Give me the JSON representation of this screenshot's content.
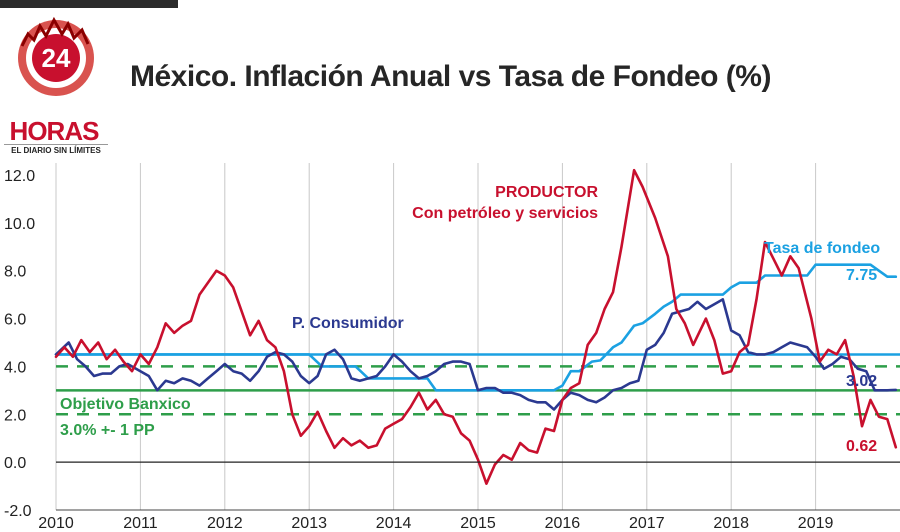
{
  "header": {
    "title": "México. Inflación Anual vs Tasa de Fondeo (%)"
  },
  "logo": {
    "number": "24",
    "name": "HORAS",
    "tagline": "EL DIARIO SIN LÍMITES"
  },
  "colors": {
    "productor": "#c8102e",
    "consumidor": "#2b3990",
    "fondeo": "#1ba1e2",
    "objetivo": "#2e9e4a",
    "grid": "#c8c8c8"
  },
  "chart_data": {
    "type": "line",
    "title": "México. Inflación Anual vs Tasa de Fondeo (%)",
    "xlabel": "",
    "ylabel": "",
    "xlim": [
      2010,
      2020
    ],
    "ylim": [
      -2,
      12.5
    ],
    "x_ticks": [
      2010,
      2011,
      2012,
      2013,
      2014,
      2015,
      2016,
      2017,
      2018,
      2019
    ],
    "x_tick_labels": [
      "2010",
      "2011",
      "2012",
      "2013",
      "2014",
      "2015",
      "2016",
      "2017",
      "2018",
      "2019"
    ],
    "y_ticks": [
      -2,
      0,
      2,
      4,
      6,
      8,
      10,
      12
    ],
    "y_tick_labels": [
      "-2.0",
      "0.0",
      "2.0",
      "4.0",
      "6.0",
      "8.0",
      "10.0",
      "12.0"
    ],
    "grid": true,
    "series": [
      {
        "name": "PRODUCTOR",
        "sublabel": "Con petróleo y servicios",
        "color": "#c8102e",
        "end_label": "0.62",
        "points": [
          [
            2010.0,
            4.4
          ],
          [
            2010.1,
            4.8
          ],
          [
            2010.2,
            4.4
          ],
          [
            2010.3,
            5.1
          ],
          [
            2010.4,
            4.6
          ],
          [
            2010.5,
            5.0
          ],
          [
            2010.6,
            4.3
          ],
          [
            2010.7,
            4.7
          ],
          [
            2010.8,
            4.2
          ],
          [
            2010.9,
            3.8
          ],
          [
            2011.0,
            4.5
          ],
          [
            2011.1,
            4.1
          ],
          [
            2011.2,
            4.8
          ],
          [
            2011.3,
            5.8
          ],
          [
            2011.4,
            5.4
          ],
          [
            2011.5,
            5.7
          ],
          [
            2011.6,
            5.9
          ],
          [
            2011.7,
            7.0
          ],
          [
            2011.8,
            7.5
          ],
          [
            2011.9,
            8.0
          ],
          [
            2012.0,
            7.8
          ],
          [
            2012.1,
            7.3
          ],
          [
            2012.2,
            6.3
          ],
          [
            2012.3,
            5.3
          ],
          [
            2012.4,
            5.9
          ],
          [
            2012.5,
            5.1
          ],
          [
            2012.6,
            4.8
          ],
          [
            2012.7,
            3.8
          ],
          [
            2012.8,
            2.0
          ],
          [
            2012.9,
            1.1
          ],
          [
            2013.0,
            1.5
          ],
          [
            2013.1,
            2.1
          ],
          [
            2013.2,
            1.3
          ],
          [
            2013.3,
            0.6
          ],
          [
            2013.4,
            1.0
          ],
          [
            2013.5,
            0.7
          ],
          [
            2013.6,
            0.9
          ],
          [
            2013.7,
            0.6
          ],
          [
            2013.8,
            0.7
          ],
          [
            2013.9,
            1.4
          ],
          [
            2014.0,
            1.6
          ],
          [
            2014.1,
            1.8
          ],
          [
            2014.2,
            2.3
          ],
          [
            2014.3,
            2.9
          ],
          [
            2014.4,
            2.2
          ],
          [
            2014.5,
            2.6
          ],
          [
            2014.6,
            2.0
          ],
          [
            2014.7,
            1.9
          ],
          [
            2014.8,
            1.2
          ],
          [
            2014.9,
            0.9
          ],
          [
            2015.0,
            0.1
          ],
          [
            2015.1,
            -0.9
          ],
          [
            2015.2,
            -0.1
          ],
          [
            2015.3,
            0.3
          ],
          [
            2015.4,
            0.1
          ],
          [
            2015.5,
            0.8
          ],
          [
            2015.6,
            0.5
          ],
          [
            2015.7,
            0.4
          ],
          [
            2015.8,
            1.4
          ],
          [
            2015.9,
            1.3
          ],
          [
            2016.0,
            2.6
          ],
          [
            2016.1,
            3.1
          ],
          [
            2016.2,
            3.3
          ],
          [
            2016.3,
            4.9
          ],
          [
            2016.4,
            5.4
          ],
          [
            2016.5,
            6.4
          ],
          [
            2016.6,
            7.1
          ],
          [
            2016.7,
            9.0
          ],
          [
            2016.85,
            12.2
          ],
          [
            2016.95,
            11.5
          ],
          [
            2017.1,
            10.2
          ],
          [
            2017.25,
            8.6
          ],
          [
            2017.35,
            6.4
          ],
          [
            2017.45,
            5.8
          ],
          [
            2017.55,
            4.9
          ],
          [
            2017.7,
            6.0
          ],
          [
            2017.8,
            5.1
          ],
          [
            2017.9,
            3.7
          ],
          [
            2018.0,
            3.8
          ],
          [
            2018.1,
            4.6
          ],
          [
            2018.2,
            4.9
          ],
          [
            2018.3,
            6.8
          ],
          [
            2018.4,
            9.2
          ],
          [
            2018.5,
            8.5
          ],
          [
            2018.6,
            7.8
          ],
          [
            2018.7,
            8.6
          ],
          [
            2018.8,
            8.1
          ],
          [
            2018.95,
            6.0
          ],
          [
            2019.05,
            4.2
          ],
          [
            2019.15,
            4.7
          ],
          [
            2019.25,
            4.5
          ],
          [
            2019.35,
            5.1
          ],
          [
            2019.45,
            3.6
          ],
          [
            2019.55,
            1.5
          ],
          [
            2019.65,
            2.6
          ],
          [
            2019.75,
            1.9
          ],
          [
            2019.85,
            1.8
          ],
          [
            2019.95,
            0.62
          ]
        ]
      },
      {
        "name": "P. Consumidor",
        "color": "#2b3990",
        "end_label": "3.02",
        "points": [
          [
            2010.0,
            4.5
          ],
          [
            2010.15,
            5.0
          ],
          [
            2010.25,
            4.3
          ],
          [
            2010.35,
            4.0
          ],
          [
            2010.45,
            3.6
          ],
          [
            2010.55,
            3.7
          ],
          [
            2010.65,
            3.7
          ],
          [
            2010.75,
            4.0
          ],
          [
            2010.85,
            4.1
          ],
          [
            2011.0,
            3.8
          ],
          [
            2011.1,
            3.6
          ],
          [
            2011.2,
            3.0
          ],
          [
            2011.3,
            3.4
          ],
          [
            2011.4,
            3.3
          ],
          [
            2011.5,
            3.5
          ],
          [
            2011.6,
            3.4
          ],
          [
            2011.7,
            3.2
          ],
          [
            2011.8,
            3.5
          ],
          [
            2011.9,
            3.8
          ],
          [
            2012.0,
            4.1
          ],
          [
            2012.1,
            3.8
          ],
          [
            2012.2,
            3.7
          ],
          [
            2012.3,
            3.4
          ],
          [
            2012.4,
            3.8
          ],
          [
            2012.5,
            4.4
          ],
          [
            2012.6,
            4.6
          ],
          [
            2012.7,
            4.5
          ],
          [
            2012.8,
            4.2
          ],
          [
            2012.9,
            3.6
          ],
          [
            2013.0,
            3.3
          ],
          [
            2013.1,
            3.6
          ],
          [
            2013.2,
            4.5
          ],
          [
            2013.3,
            4.7
          ],
          [
            2013.4,
            4.3
          ],
          [
            2013.5,
            3.5
          ],
          [
            2013.6,
            3.4
          ],
          [
            2013.7,
            3.5
          ],
          [
            2013.8,
            3.6
          ],
          [
            2013.9,
            4.0
          ],
          [
            2014.0,
            4.5
          ],
          [
            2014.1,
            4.2
          ],
          [
            2014.2,
            3.8
          ],
          [
            2014.3,
            3.5
          ],
          [
            2014.4,
            3.6
          ],
          [
            2014.5,
            3.8
          ],
          [
            2014.6,
            4.1
          ],
          [
            2014.7,
            4.2
          ],
          [
            2014.8,
            4.2
          ],
          [
            2014.9,
            4.1
          ],
          [
            2015.0,
            3.0
          ],
          [
            2015.1,
            3.1
          ],
          [
            2015.2,
            3.1
          ],
          [
            2015.3,
            2.9
          ],
          [
            2015.4,
            2.9
          ],
          [
            2015.5,
            2.8
          ],
          [
            2015.6,
            2.6
          ],
          [
            2015.7,
            2.5
          ],
          [
            2015.8,
            2.5
          ],
          [
            2015.9,
            2.2
          ],
          [
            2016.0,
            2.6
          ],
          [
            2016.1,
            2.9
          ],
          [
            2016.2,
            2.8
          ],
          [
            2016.3,
            2.6
          ],
          [
            2016.4,
            2.5
          ],
          [
            2016.5,
            2.7
          ],
          [
            2016.6,
            3.0
          ],
          [
            2016.7,
            3.1
          ],
          [
            2016.8,
            3.3
          ],
          [
            2016.9,
            3.4
          ],
          [
            2017.0,
            4.7
          ],
          [
            2017.1,
            4.9
          ],
          [
            2017.2,
            5.4
          ],
          [
            2017.3,
            6.2
          ],
          [
            2017.4,
            6.3
          ],
          [
            2017.5,
            6.4
          ],
          [
            2017.6,
            6.7
          ],
          [
            2017.7,
            6.4
          ],
          [
            2017.8,
            6.6
          ],
          [
            2017.9,
            6.8
          ],
          [
            2018.0,
            5.5
          ],
          [
            2018.1,
            5.3
          ],
          [
            2018.2,
            4.6
          ],
          [
            2018.3,
            4.5
          ],
          [
            2018.4,
            4.5
          ],
          [
            2018.5,
            4.6
          ],
          [
            2018.6,
            4.8
          ],
          [
            2018.7,
            5.0
          ],
          [
            2018.8,
            4.9
          ],
          [
            2018.9,
            4.8
          ],
          [
            2019.0,
            4.4
          ],
          [
            2019.1,
            3.9
          ],
          [
            2019.2,
            4.1
          ],
          [
            2019.3,
            4.4
          ],
          [
            2019.4,
            4.3
          ],
          [
            2019.5,
            3.9
          ],
          [
            2019.6,
            3.8
          ],
          [
            2019.7,
            3.0
          ],
          [
            2019.85,
            3.0
          ],
          [
            2019.95,
            3.02
          ]
        ]
      },
      {
        "name": "Tasa de fondeo",
        "color": "#1ba1e2",
        "end_label": "7.75",
        "points": [
          [
            2010.0,
            4.5
          ],
          [
            2013.0,
            4.5
          ],
          [
            2013.15,
            4.0
          ],
          [
            2013.55,
            4.0
          ],
          [
            2013.7,
            3.5
          ],
          [
            2014.4,
            3.5
          ],
          [
            2014.5,
            3.0
          ],
          [
            2015.9,
            3.0
          ],
          [
            2016.0,
            3.2
          ],
          [
            2016.1,
            3.8
          ],
          [
            2016.2,
            3.8
          ],
          [
            2016.35,
            4.2
          ],
          [
            2016.45,
            4.25
          ],
          [
            2016.6,
            4.8
          ],
          [
            2016.7,
            5.0
          ],
          [
            2016.85,
            5.7
          ],
          [
            2016.95,
            5.8
          ],
          [
            2017.1,
            6.2
          ],
          [
            2017.2,
            6.5
          ],
          [
            2017.3,
            6.7
          ],
          [
            2017.4,
            7.0
          ],
          [
            2017.9,
            7.0
          ],
          [
            2018.0,
            7.3
          ],
          [
            2018.1,
            7.5
          ],
          [
            2018.3,
            7.5
          ],
          [
            2018.4,
            7.8
          ],
          [
            2018.9,
            7.8
          ],
          [
            2019.0,
            8.25
          ],
          [
            2019.65,
            8.25
          ],
          [
            2019.75,
            8.0
          ],
          [
            2019.85,
            7.75
          ],
          [
            2019.95,
            7.75
          ]
        ]
      }
    ],
    "reference_lines": [
      {
        "value": 3.0,
        "style": "solid",
        "color": "#2e9e4a"
      },
      {
        "value": 4.0,
        "style": "dashed",
        "color": "#2e9e4a"
      },
      {
        "value": 2.0,
        "style": "dashed",
        "color": "#2e9e4a"
      },
      {
        "value": 4.5,
        "style": "solid",
        "color": "#1ba1e2"
      }
    ],
    "annotations": {
      "productor": "PRODUCTOR",
      "productor_sub": "Con petróleo y servicios",
      "consumidor": "P. Consumidor",
      "fondeo": "Tasa de fondeo",
      "objetivo": "Objetivo Banxico",
      "objetivo_sub": "3.0% +- 1 PP",
      "end_productor": "0.62",
      "end_consumidor": "3.02",
      "end_fondeo": "7.75"
    }
  }
}
